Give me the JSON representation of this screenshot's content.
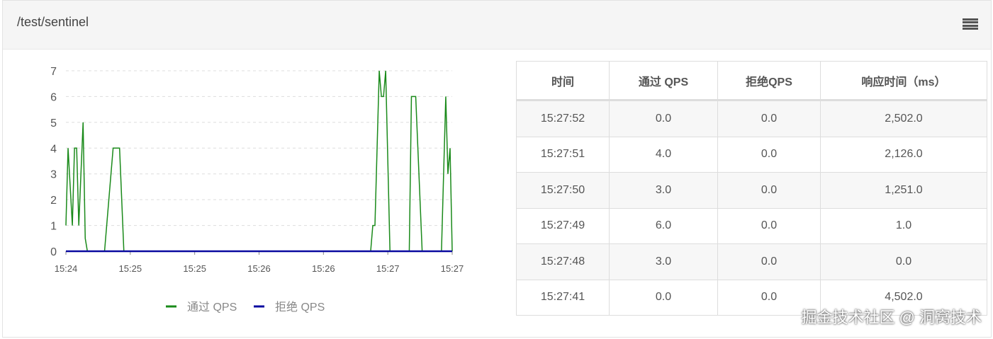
{
  "panel": {
    "title": "/test/sentinel",
    "menu_icon": "hamburger-menu-icon"
  },
  "chart_data": {
    "type": "line",
    "ylim": [
      0,
      7
    ],
    "yticks": [
      0,
      1,
      2,
      3,
      4,
      5,
      6,
      7
    ],
    "xlim": [
      "15:24:00",
      "15:27:00"
    ],
    "xtick_labels": [
      "15:24",
      "15:25",
      "15:25",
      "15:26",
      "15:26",
      "15:27",
      "15:27"
    ],
    "grid": "horizontal-dashed",
    "legend_position": "bottom",
    "series": [
      {
        "name": "通过 QPS",
        "color": "#1a8a1a",
        "points": [
          [
            "15:24:00",
            1
          ],
          [
            "15:24:01",
            4
          ],
          [
            "15:24:03",
            1
          ],
          [
            "15:24:04",
            4
          ],
          [
            "15:24:05",
            4
          ],
          [
            "15:24:06",
            1
          ],
          [
            "15:24:08",
            5
          ],
          [
            "15:24:09",
            0.5
          ],
          [
            "15:24:10",
            0
          ],
          [
            "15:24:18",
            0
          ],
          [
            "15:24:20",
            2
          ],
          [
            "15:24:22",
            4
          ],
          [
            "15:24:25",
            4
          ],
          [
            "15:24:27",
            0
          ],
          [
            "15:26:22",
            0
          ],
          [
            "15:26:23",
            1
          ],
          [
            "15:26:24",
            1
          ],
          [
            "15:26:26",
            7
          ],
          [
            "15:26:27",
            6
          ],
          [
            "15:26:28",
            6
          ],
          [
            "15:26:29",
            7
          ],
          [
            "15:26:31",
            0
          ],
          [
            "15:26:40",
            0
          ],
          [
            "15:26:41",
            6
          ],
          [
            "15:26:43",
            6
          ],
          [
            "15:26:46",
            0
          ],
          [
            "15:26:55",
            0
          ],
          [
            "15:26:57",
            6
          ],
          [
            "15:26:58",
            3
          ],
          [
            "15:26:59",
            4
          ],
          [
            "15:27:00",
            0
          ]
        ]
      },
      {
        "name": "拒绝 QPS",
        "color": "#0a0aa0",
        "points": [
          [
            "15:24:00",
            0
          ],
          [
            "15:27:00",
            0
          ]
        ]
      }
    ]
  },
  "table": {
    "headers": [
      "时间",
      "通过 QPS",
      "拒绝QPS",
      "响应时间（ms）"
    ],
    "rows": [
      [
        "15:27:52",
        "0.0",
        "0.0",
        "2,502.0"
      ],
      [
        "15:27:51",
        "4.0",
        "0.0",
        "2,126.0"
      ],
      [
        "15:27:50",
        "3.0",
        "0.0",
        "1,251.0"
      ],
      [
        "15:27:49",
        "6.0",
        "0.0",
        "1.0"
      ],
      [
        "15:27:48",
        "3.0",
        "0.0",
        "0.0"
      ],
      [
        "15:27:41",
        "0.0",
        "0.0",
        "4,502.0"
      ]
    ]
  },
  "watermark": "掘金技术社区 @ 洞窝技术"
}
